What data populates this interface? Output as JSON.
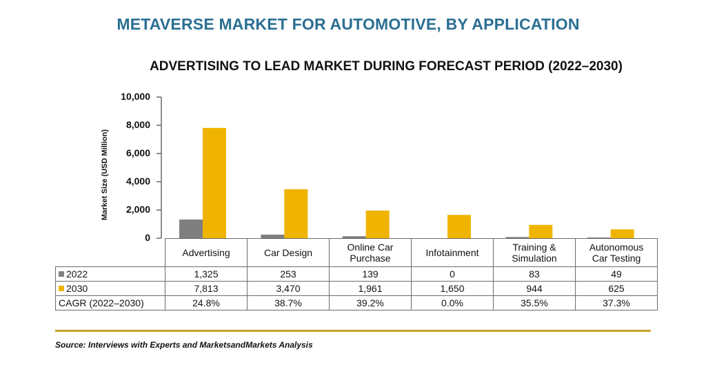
{
  "title": "METAVERSE MARKET FOR AUTOMOTIVE, BY APPLICATION",
  "subtitle": "ADVERTISING TO LEAD MARKET DURING FORECAST PERIOD (2022–2030)",
  "source": "Source: Interviews with Experts and MarketsandMarkets Analysis",
  "colors": {
    "series_2022": "#7f7f7f",
    "series_2030": "#f0b400",
    "title": "#2a6f93",
    "divider": "#c9a227"
  },
  "chart_data": {
    "type": "bar",
    "ylabel": "Market Size (USD Million)",
    "ylim": [
      0,
      10000
    ],
    "yticks": [
      "0",
      "2,000",
      "4,000",
      "6,000",
      "8,000",
      "10,000"
    ],
    "categories": [
      [
        "Advertising"
      ],
      [
        "Car Design"
      ],
      [
        "Online Car",
        "Purchase"
      ],
      [
        "Infotainment"
      ],
      [
        "Training &",
        "Simulation"
      ],
      [
        "Autonomous",
        "Car Testing"
      ]
    ],
    "series": [
      {
        "name": "2022",
        "values": [
          1325,
          253,
          139,
          0,
          83,
          49
        ],
        "labels": [
          "1,325",
          "253",
          "139",
          "0",
          "83",
          "49"
        ]
      },
      {
        "name": "2030",
        "values": [
          7813,
          3470,
          1961,
          1650,
          944,
          625
        ],
        "labels": [
          "7,813",
          "3,470",
          "1,961",
          "1,650",
          "944",
          "625"
        ]
      }
    ],
    "cagr": {
      "name": "CAGR (2022–2030)",
      "values": [
        "24.8%",
        "38.7%",
        "39.2%",
        "0.0%",
        "35.5%",
        "37.3%"
      ]
    },
    "grid": false
  }
}
